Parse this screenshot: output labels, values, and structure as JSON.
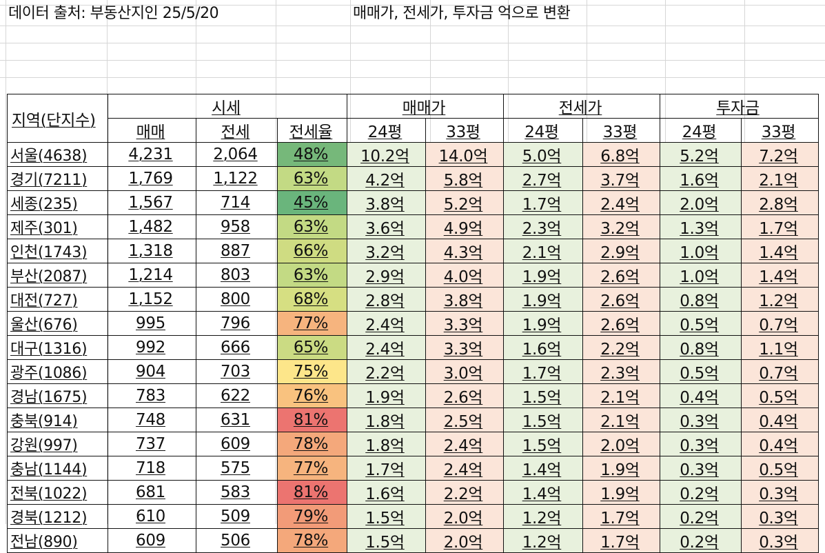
{
  "header": {
    "source_note": "데이터 출처: 부동산지인 25/5/20",
    "unit_note": "매매가, 전세가, 투자금 억으로 변환"
  },
  "table": {
    "region_header": "지역(단지수)",
    "groups": [
      "시세",
      "매매가",
      "전세가",
      "투자금"
    ],
    "sub_headers": [
      "매매",
      "전세",
      "전세율",
      "24평",
      "33평",
      "24평",
      "33평",
      "24평",
      "33평"
    ],
    "rows": [
      {
        "region": "서울(4638)",
        "buy": "4,231",
        "rent": "2,064",
        "ratio": "48%",
        "ratio_color": "#76b87a",
        "buy24": "10.2억",
        "buy33": "14.0억",
        "rent24": "5.0억",
        "rent33": "6.8억",
        "inv24": "5.2억",
        "inv33": "7.2억"
      },
      {
        "region": "경기(7211)",
        "buy": "1,769",
        "rent": "1,122",
        "ratio": "63%",
        "ratio_color": "#c3da84",
        "buy24": "4.2억",
        "buy33": "5.8억",
        "rent24": "2.7억",
        "rent33": "3.7억",
        "inv24": "1.6억",
        "inv33": "2.1억"
      },
      {
        "region": "세종(235)",
        "buy": "1,567",
        "rent": "714",
        "ratio": "45%",
        "ratio_color": "#6ab57c",
        "buy24": "3.8억",
        "buy33": "5.2억",
        "rent24": "1.7억",
        "rent33": "2.4억",
        "inv24": "2.0억",
        "inv33": "2.8억"
      },
      {
        "region": "제주(301)",
        "buy": "1,482",
        "rent": "958",
        "ratio": "63%",
        "ratio_color": "#c3da84",
        "buy24": "3.6억",
        "buy33": "4.9억",
        "rent24": "2.3억",
        "rent33": "3.2억",
        "inv24": "1.3억",
        "inv33": "1.7억"
      },
      {
        "region": "인천(1743)",
        "buy": "1,318",
        "rent": "887",
        "ratio": "66%",
        "ratio_color": "#cfdc82",
        "buy24": "3.2억",
        "buy33": "4.3억",
        "rent24": "2.1억",
        "rent33": "2.9억",
        "inv24": "1.0억",
        "inv33": "1.4억"
      },
      {
        "region": "부산(2087)",
        "buy": "1,214",
        "rent": "803",
        "ratio": "63%",
        "ratio_color": "#c3da84",
        "buy24": "2.9억",
        "buy33": "4.0억",
        "rent24": "1.9억",
        "rent33": "2.6억",
        "inv24": "1.0억",
        "inv33": "1.4억"
      },
      {
        "region": "대전(727)",
        "buy": "1,152",
        "rent": "800",
        "ratio": "68%",
        "ratio_color": "#d6df82",
        "buy24": "2.8억",
        "buy33": "3.8억",
        "rent24": "1.9억",
        "rent33": "2.6억",
        "inv24": "0.8억",
        "inv33": "1.2억"
      },
      {
        "region": "울산(676)",
        "buy": "995",
        "rent": "796",
        "ratio": "77%",
        "ratio_color": "#f6b47e",
        "buy24": "2.4억",
        "buy33": "3.3억",
        "rent24": "1.9억",
        "rent33": "2.6억",
        "inv24": "0.5억",
        "inv33": "0.7억"
      },
      {
        "region": "대구(1316)",
        "buy": "992",
        "rent": "666",
        "ratio": "65%",
        "ratio_color": "#cbdb83",
        "buy24": "2.4억",
        "buy33": "3.3억",
        "rent24": "1.6억",
        "rent33": "2.2억",
        "inv24": "0.8억",
        "inv33": "1.1억"
      },
      {
        "region": "광주(1086)",
        "buy": "904",
        "rent": "703",
        "ratio": "75%",
        "ratio_color": "#fde68a",
        "buy24": "2.2억",
        "buy33": "3.0억",
        "rent24": "1.7억",
        "rent33": "2.3억",
        "inv24": "0.5억",
        "inv33": "0.7억"
      },
      {
        "region": "경남(1675)",
        "buy": "783",
        "rent": "622",
        "ratio": "76%",
        "ratio_color": "#f9c27f",
        "buy24": "1.9억",
        "buy33": "2.6억",
        "rent24": "1.5억",
        "rent33": "2.1억",
        "inv24": "0.4억",
        "inv33": "0.5억"
      },
      {
        "region": "충북(914)",
        "buy": "748",
        "rent": "631",
        "ratio": "81%",
        "ratio_color": "#ec7470",
        "buy24": "1.8억",
        "buy33": "2.5억",
        "rent24": "1.5억",
        "rent33": "2.1억",
        "inv24": "0.3억",
        "inv33": "0.4억"
      },
      {
        "region": "강원(997)",
        "buy": "737",
        "rent": "609",
        "ratio": "78%",
        "ratio_color": "#f4a87b",
        "buy24": "1.8억",
        "buy33": "2.4억",
        "rent24": "1.5억",
        "rent33": "2.0억",
        "inv24": "0.3억",
        "inv33": "0.4억"
      },
      {
        "region": "충남(1144)",
        "buy": "718",
        "rent": "575",
        "ratio": "77%",
        "ratio_color": "#f6b47e",
        "buy24": "1.7억",
        "buy33": "2.4억",
        "rent24": "1.4억",
        "rent33": "1.9억",
        "inv24": "0.3억",
        "inv33": "0.5억"
      },
      {
        "region": "전북(1022)",
        "buy": "681",
        "rent": "583",
        "ratio": "81%",
        "ratio_color": "#ec7470",
        "buy24": "1.6억",
        "buy33": "2.2억",
        "rent24": "1.4억",
        "rent33": "1.9억",
        "inv24": "0.2억",
        "inv33": "0.3억"
      },
      {
        "region": "경북(1212)",
        "buy": "610",
        "rent": "509",
        "ratio": "79%",
        "ratio_color": "#f29b78",
        "buy24": "1.5억",
        "buy33": "2.0억",
        "rent24": "1.2억",
        "rent33": "1.7억",
        "inv24": "0.2억",
        "inv33": "0.3억"
      },
      {
        "region": "전남(890)",
        "buy": "609",
        "rent": "506",
        "ratio": "78%",
        "ratio_color": "#f4a87b",
        "buy24": "1.5억",
        "buy33": "2.0억",
        "rent24": "1.2억",
        "rent33": "1.7억",
        "inv24": "0.2억",
        "inv33": "0.3억"
      }
    ]
  }
}
